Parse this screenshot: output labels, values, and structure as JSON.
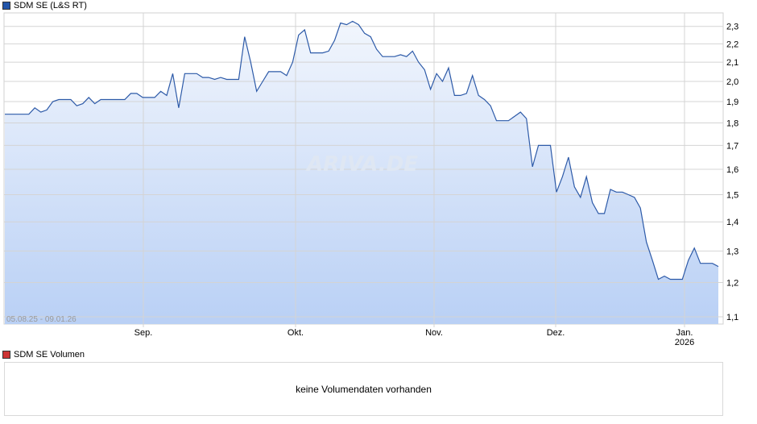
{
  "price_legend": {
    "label": "SDM SE (L&S RT)",
    "color": "#2255aa"
  },
  "volume_legend": {
    "label": "SDM SE Volumen",
    "color": "#cc3333"
  },
  "volume_panel": {
    "message": "keine Volumendaten vorhanden"
  },
  "watermark": "ARIVA.DE",
  "chart_data": {
    "type": "area",
    "date_range_label": "05.08.25 - 09.01.26",
    "x_tick_labels": [
      {
        "label": "Sep.",
        "date": "2025-09-01"
      },
      {
        "label": "Okt.",
        "date": "2025-10-01"
      },
      {
        "label": "Nov.",
        "date": "2025-11-01"
      },
      {
        "label": "Dez.",
        "date": "2025-12-01"
      },
      {
        "label": "Jan.",
        "sublabel": "2026",
        "date": "2026-01-01"
      }
    ],
    "y_ticks": [
      "1,1",
      "1,2",
      "1,3",
      "1,4",
      "1,5",
      "1,6",
      "1,7",
      "1,8",
      "1,9",
      "2,0",
      "2,1",
      "2,2",
      "2,3"
    ],
    "y_tick_values": [
      1.1,
      1.2,
      1.3,
      1.4,
      1.5,
      1.6,
      1.7,
      1.8,
      1.9,
      2.0,
      2.1,
      2.2,
      2.3
    ],
    "y_scale": "log",
    "ylim": [
      1.08,
      2.38
    ],
    "xlim": [
      "2025-08-05",
      "2026-01-09"
    ],
    "grid": true,
    "colors": {
      "line": "#2d5aa8",
      "fill_top": "#f2f6fd",
      "fill_bottom": "#b9d0f5",
      "grid": "#d4d4d4"
    },
    "series": [
      {
        "values": [
          [
            "2025-08-05",
            1.84
          ],
          [
            "2025-08-06",
            1.84
          ],
          [
            "2025-08-07",
            1.84
          ],
          [
            "2025-08-08",
            1.84
          ],
          [
            "2025-08-11",
            1.84
          ],
          [
            "2025-08-12",
            1.87
          ],
          [
            "2025-08-13",
            1.85
          ],
          [
            "2025-08-14",
            1.86
          ],
          [
            "2025-08-15",
            1.9
          ],
          [
            "2025-08-18",
            1.91
          ],
          [
            "2025-08-19",
            1.91
          ],
          [
            "2025-08-20",
            1.91
          ],
          [
            "2025-08-21",
            1.88
          ],
          [
            "2025-08-22",
            1.89
          ],
          [
            "2025-08-25",
            1.92
          ],
          [
            "2025-08-26",
            1.89
          ],
          [
            "2025-08-27",
            1.91
          ],
          [
            "2025-08-28",
            1.91
          ],
          [
            "2025-08-29",
            1.91
          ],
          [
            "2025-09-01",
            1.91
          ],
          [
            "2025-09-02",
            1.91
          ],
          [
            "2025-09-03",
            1.94
          ],
          [
            "2025-09-04",
            1.94
          ],
          [
            "2025-09-05",
            1.92
          ],
          [
            "2025-09-08",
            1.92
          ],
          [
            "2025-09-09",
            1.92
          ],
          [
            "2025-09-10",
            1.95
          ],
          [
            "2025-09-11",
            1.93
          ],
          [
            "2025-09-12",
            2.04
          ],
          [
            "2025-09-15",
            1.87
          ],
          [
            "2025-09-16",
            2.04
          ],
          [
            "2025-09-17",
            2.04
          ],
          [
            "2025-09-18",
            2.04
          ],
          [
            "2025-09-19",
            2.02
          ],
          [
            "2025-09-22",
            2.02
          ],
          [
            "2025-09-23",
            2.01
          ],
          [
            "2025-09-24",
            2.02
          ],
          [
            "2025-09-25",
            2.01
          ],
          [
            "2025-09-26",
            2.01
          ],
          [
            "2025-09-29",
            2.01
          ],
          [
            "2025-09-30",
            2.24
          ],
          [
            "2025-10-01",
            2.1
          ],
          [
            "2025-10-02",
            1.95
          ],
          [
            "2025-10-03",
            2.0
          ],
          [
            "2025-10-06",
            2.05
          ],
          [
            "2025-10-07",
            2.05
          ],
          [
            "2025-10-08",
            2.05
          ],
          [
            "2025-10-09",
            2.03
          ],
          [
            "2025-10-10",
            2.1
          ],
          [
            "2025-10-13",
            2.25
          ],
          [
            "2025-10-14",
            2.28
          ],
          [
            "2025-10-15",
            2.15
          ],
          [
            "2025-10-16",
            2.15
          ],
          [
            "2025-10-17",
            2.15
          ],
          [
            "2025-10-20",
            2.16
          ],
          [
            "2025-10-21",
            2.22
          ],
          [
            "2025-10-22",
            2.32
          ],
          [
            "2025-10-23",
            2.31
          ],
          [
            "2025-10-24",
            2.33
          ],
          [
            "2025-10-27",
            2.31
          ],
          [
            "2025-10-28",
            2.26
          ],
          [
            "2025-10-29",
            2.24
          ],
          [
            "2025-10-30",
            2.17
          ],
          [
            "2025-10-31",
            2.13
          ],
          [
            "2025-11-03",
            2.13
          ],
          [
            "2025-11-04",
            2.13
          ],
          [
            "2025-11-05",
            2.14
          ],
          [
            "2025-11-06",
            2.13
          ],
          [
            "2025-11-07",
            2.16
          ],
          [
            "2025-11-10",
            2.1
          ],
          [
            "2025-11-11",
            2.06
          ],
          [
            "2025-11-12",
            1.96
          ],
          [
            "2025-11-13",
            2.04
          ],
          [
            "2025-11-14",
            2.0
          ],
          [
            "2025-11-17",
            2.07
          ],
          [
            "2025-11-18",
            1.93
          ],
          [
            "2025-11-19",
            1.93
          ],
          [
            "2025-11-20",
            1.94
          ],
          [
            "2025-11-21",
            2.03
          ],
          [
            "2025-11-24",
            1.93
          ],
          [
            "2025-11-25",
            1.91
          ],
          [
            "2025-11-26",
            1.88
          ],
          [
            "2025-11-27",
            1.81
          ],
          [
            "2025-11-28",
            1.81
          ],
          [
            "2025-12-01",
            1.81
          ],
          [
            "2025-12-02",
            1.83
          ],
          [
            "2025-12-03",
            1.85
          ],
          [
            "2025-12-04",
            1.82
          ],
          [
            "2025-12-05",
            1.61
          ],
          [
            "2025-12-08",
            1.7
          ],
          [
            "2025-12-09",
            1.7
          ],
          [
            "2025-12-10",
            1.7
          ],
          [
            "2025-12-11",
            1.51
          ],
          [
            "2025-12-12",
            1.57
          ],
          [
            "2025-12-15",
            1.65
          ],
          [
            "2025-12-16",
            1.53
          ],
          [
            "2025-12-17",
            1.49
          ],
          [
            "2025-12-18",
            1.57
          ],
          [
            "2025-12-19",
            1.47
          ],
          [
            "2025-12-22",
            1.43
          ],
          [
            "2025-12-23",
            1.43
          ],
          [
            "2025-12-24",
            1.52
          ],
          [
            "2025-12-25",
            1.51
          ],
          [
            "2025-12-26",
            1.51
          ],
          [
            "2025-12-29",
            1.5
          ],
          [
            "2025-12-30",
            1.49
          ],
          [
            "2025-12-31",
            1.45
          ],
          [
            "2026-01-01",
            1.33
          ],
          [
            "2026-01-02",
            1.27
          ],
          [
            "2026-01-03",
            1.21
          ],
          [
            "2026-01-04",
            1.22
          ],
          [
            "2026-01-05",
            1.21
          ],
          [
            "2026-01-06",
            1.21
          ],
          [
            "2026-01-07",
            1.21
          ],
          [
            "2026-01-07b",
            1.27
          ],
          [
            "2026-01-08",
            1.31
          ],
          [
            "2026-01-08b",
            1.26
          ],
          [
            "2026-01-08c",
            1.26
          ],
          [
            "2026-01-08d",
            1.26
          ],
          [
            "2026-01-09",
            1.25
          ]
        ]
      }
    ]
  }
}
